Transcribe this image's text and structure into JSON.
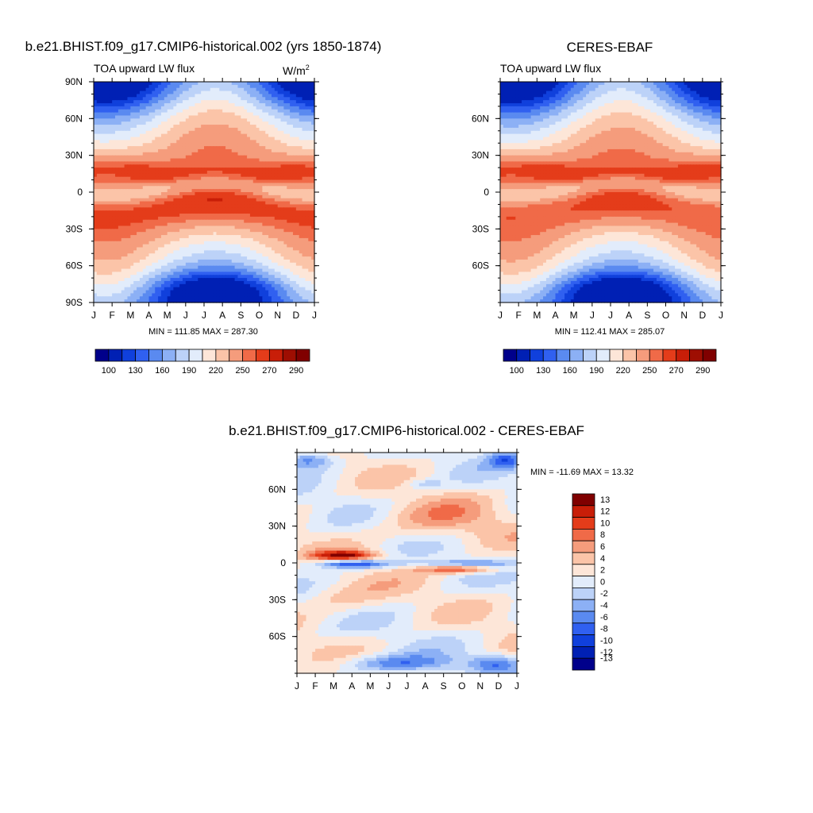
{
  "colors": {
    "cmap_abs": [
      "#00008b",
      "#0020b4",
      "#1040dc",
      "#3060f0",
      "#5a8af0",
      "#8cb0f5",
      "#bcd2f8",
      "#e2ecfb",
      "#fde6d8",
      "#fbc4a8",
      "#f59c7c",
      "#f06a48",
      "#e43c1a",
      "#c81e08",
      "#9e0e02",
      "#800000"
    ],
    "cmap_diff": [
      "#00008b",
      "#0020b4",
      "#1040dc",
      "#3060f0",
      "#5a8af0",
      "#8cb0f5",
      "#bcd2f8",
      "#e2ecfb",
      "#fde6d8",
      "#fbc4a8",
      "#f59c7c",
      "#f06a48",
      "#e43c1a",
      "#c81e08",
      "#800000"
    ]
  },
  "chart_data": [
    {
      "type": "heatmap",
      "title": "b.e21.BHIST.f09_g17.CMIP6-historical.002 (yrs 1850-1874)",
      "subtitle": "TOA upward LW flux",
      "units": "W/m",
      "units_exponent": "2",
      "x_tick_labels": [
        "J",
        "F",
        "M",
        "A",
        "M",
        "J",
        "J",
        "A",
        "S",
        "O",
        "N",
        "D",
        "J"
      ],
      "y_tick_labels": [
        "90N",
        "60N",
        "30N",
        "0",
        "30S",
        "60S",
        "90S"
      ],
      "y_tick_values": [
        90,
        60,
        30,
        0,
        -30,
        -60,
        -90
      ],
      "ylim": [
        -90,
        90
      ],
      "stats": "MIN = 111.85 MAX = 287.30",
      "min": 111.85,
      "max": 287.3,
      "levels": [
        100,
        115,
        130,
        145,
        160,
        175,
        190,
        205,
        220,
        235,
        250,
        260,
        270,
        280,
        290
      ],
      "colorbar_labels": [
        "100",
        "130",
        "160",
        "190",
        "220",
        "250",
        "270",
        "290"
      ]
    },
    {
      "type": "heatmap",
      "title": "CERES-EBAF",
      "subtitle": "TOA upward LW flux",
      "x_tick_labels": [
        "J",
        "F",
        "M",
        "A",
        "M",
        "J",
        "J",
        "A",
        "S",
        "O",
        "N",
        "D",
        "J"
      ],
      "y_tick_labels": [
        "60N",
        "30N",
        "0",
        "30S",
        "60S"
      ],
      "y_tick_values": [
        60,
        30,
        0,
        -30,
        -60
      ],
      "ylim": [
        -90,
        90
      ],
      "stats": "MIN = 112.41 MAX = 285.07",
      "min": 112.41,
      "max": 285.07,
      "levels": [
        100,
        115,
        130,
        145,
        160,
        175,
        190,
        205,
        220,
        235,
        250,
        260,
        270,
        280,
        290
      ],
      "colorbar_labels": [
        "100",
        "130",
        "160",
        "190",
        "220",
        "250",
        "270",
        "290"
      ]
    },
    {
      "type": "heatmap",
      "title": "b.e21.BHIST.f09_g17.CMIP6-historical.002 - CERES-EBAF",
      "x_tick_labels": [
        "J",
        "F",
        "M",
        "A",
        "M",
        "J",
        "J",
        "A",
        "S",
        "O",
        "N",
        "D",
        "J"
      ],
      "y_tick_labels": [
        "60N",
        "30N",
        "0",
        "30S",
        "60S"
      ],
      "y_tick_values": [
        60,
        30,
        0,
        -30,
        -60
      ],
      "ylim": [
        -90,
        90
      ],
      "stats": "MIN = -11.69 MAX =  13.32",
      "min": -11.69,
      "max": 13.32,
      "levels": [
        -13,
        -12,
        -10,
        -8,
        -6,
        -4,
        -2,
        0,
        2,
        4,
        6,
        8,
        10,
        12,
        13
      ],
      "colorbar_labels": [
        "13",
        "12",
        "10",
        "8",
        "6",
        "4",
        "2",
        "0",
        "-2",
        "-4",
        "-6",
        "-8",
        "-10",
        "-12",
        "-13"
      ]
    }
  ]
}
